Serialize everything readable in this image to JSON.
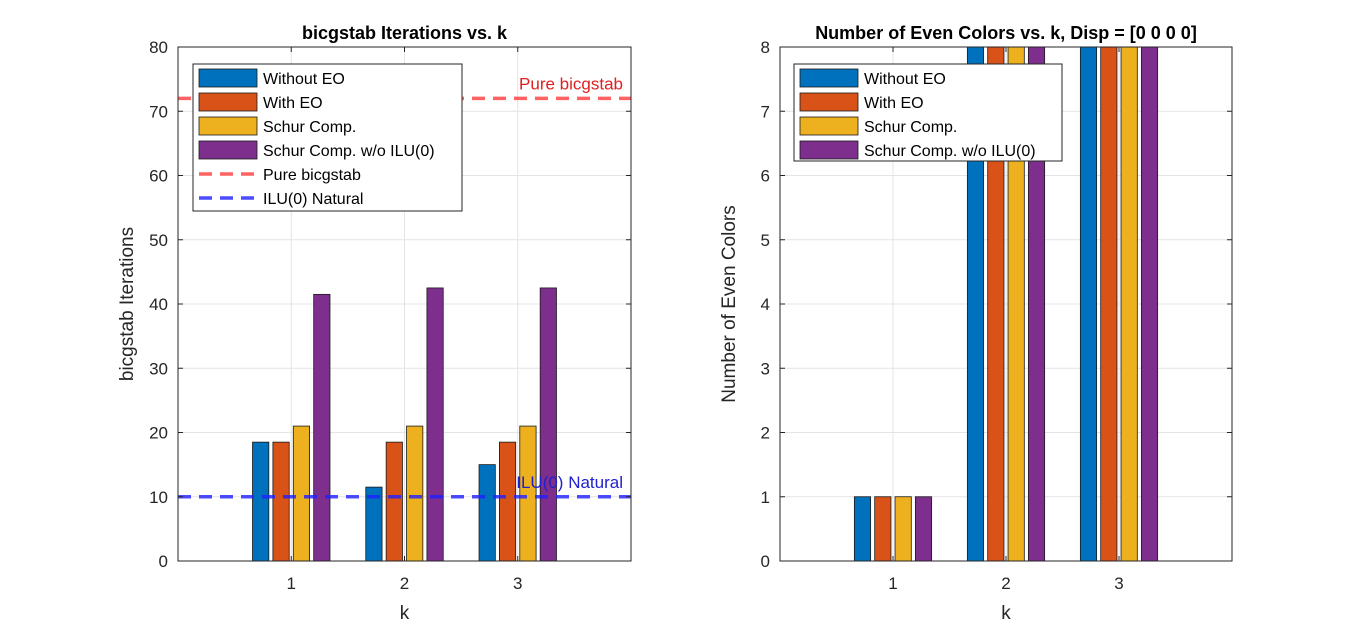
{
  "colors": {
    "without_eo": "#0072BD",
    "with_eo": "#D95319",
    "schur": "#EDB120",
    "schur_no_ilu": "#7E2F8E",
    "pure_bicgstab_line": "#FF3B3B",
    "ilu_natural_line": "#2020FF",
    "ilu_label_text": "#2020CC",
    "pure_label_text": "#E02020"
  },
  "chart_data": [
    {
      "type": "bar",
      "title": "bicgstab Iterations vs. k",
      "xlabel": "k",
      "ylabel": "bicgstab Iterations",
      "categories": [
        "1",
        "2",
        "3"
      ],
      "ylim": [
        0,
        80
      ],
      "yticks": [
        "0",
        "10",
        "20",
        "30",
        "40",
        "50",
        "60",
        "70",
        "80"
      ],
      "grid": true,
      "legend_position": "top-left",
      "series": [
        {
          "name": "Without EO",
          "values": [
            18.5,
            11.5,
            15
          ]
        },
        {
          "name": "With EO",
          "values": [
            18.5,
            18.5,
            18.5
          ]
        },
        {
          "name": "Schur Comp.",
          "values": [
            21,
            21,
            21
          ]
        },
        {
          "name": "Schur Comp. w/o ILU(0)",
          "values": [
            41.5,
            42.5,
            42.5
          ]
        }
      ],
      "reference_lines": [
        {
          "name": "Pure bicgstab",
          "value": 72,
          "label": "Pure bicgstab",
          "style": "dashed"
        },
        {
          "name": "ILU(0) Natural",
          "value": 10,
          "label": "ILU(0) Natural",
          "style": "dashed"
        }
      ]
    },
    {
      "type": "bar",
      "title": "Number of Even Colors vs. k,  Disp = [0 0 0 0]",
      "xlabel": "k",
      "ylabel": "Number of Even Colors",
      "categories": [
        "1",
        "2",
        "3"
      ],
      "ylim": [
        0,
        8
      ],
      "yticks": [
        "0",
        "1",
        "2",
        "3",
        "4",
        "5",
        "6",
        "7",
        "8"
      ],
      "grid": true,
      "legend_position": "top-left",
      "series": [
        {
          "name": "Without EO",
          "values": [
            1,
            8,
            8
          ]
        },
        {
          "name": "With EO",
          "values": [
            1,
            8,
            8
          ]
        },
        {
          "name": "Schur Comp.",
          "values": [
            1,
            8,
            8
          ]
        },
        {
          "name": "Schur Comp. w/o ILU(0)",
          "values": [
            1,
            8,
            8
          ]
        }
      ]
    }
  ]
}
